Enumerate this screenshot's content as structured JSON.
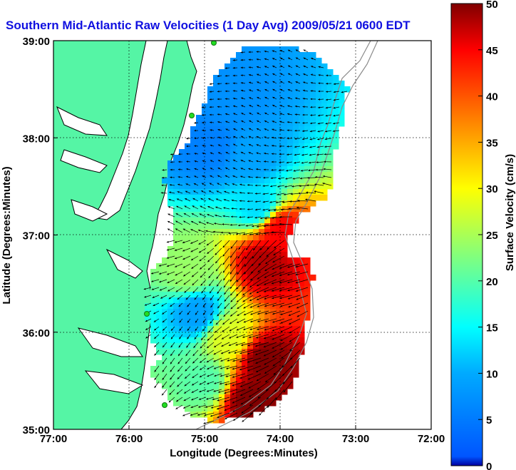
{
  "title": "Southern Mid-Atlantic Raw Velocities (1 Day Avg) 2009/05/21 0600 EDT",
  "xlabel": "Longitude (Degrees:Minutes)",
  "ylabel": "Latitude (Degrees:Minutes)",
  "colorbar_label": "Surface Velocity (cm/s)",
  "x_ticks": [
    "77:00",
    "76:00",
    "75:00",
    "74:00",
    "73:00",
    "72:00"
  ],
  "y_ticks": [
    "39:00",
    "38:00",
    "37:00",
    "36:00",
    "35:00"
  ],
  "colorbar_ticks": [
    "0",
    "5",
    "10",
    "15",
    "20",
    "25",
    "30",
    "35",
    "40",
    "45",
    "50"
  ],
  "chart_data": {
    "type": "heatmap",
    "variable": "Surface Velocity",
    "units": "cm/s",
    "xlim": [
      -77,
      -72
    ],
    "ylim": [
      35,
      39
    ],
    "color_range": [
      0,
      50
    ],
    "colormap": "jet",
    "grid": true,
    "colorbar_placement": "right",
    "land_color": "#55f5a5",
    "regions": [
      {
        "lon": -74.6,
        "lat": 38.4,
        "velocity": 7
      },
      {
        "lon": -74.4,
        "lat": 37.8,
        "velocity": 9
      },
      {
        "lon": -74.9,
        "lat": 37.9,
        "velocity": 5
      },
      {
        "lon": -74.3,
        "lat": 37.3,
        "velocity": 13
      },
      {
        "lon": -74.0,
        "lat": 37.05,
        "velocity": 45
      },
      {
        "lon": -74.2,
        "lat": 36.7,
        "velocity": 48
      },
      {
        "lon": -75.2,
        "lat": 36.6,
        "velocity": 24
      },
      {
        "lon": -75.1,
        "lat": 36.2,
        "velocity": 9
      },
      {
        "lon": -74.7,
        "lat": 35.95,
        "velocity": 28
      },
      {
        "lon": -74.2,
        "lat": 35.7,
        "velocity": 50
      },
      {
        "lon": -74.4,
        "lat": 35.3,
        "velocity": 50
      },
      {
        "lon": -75.0,
        "lat": 35.5,
        "velocity": 20
      }
    ]
  }
}
